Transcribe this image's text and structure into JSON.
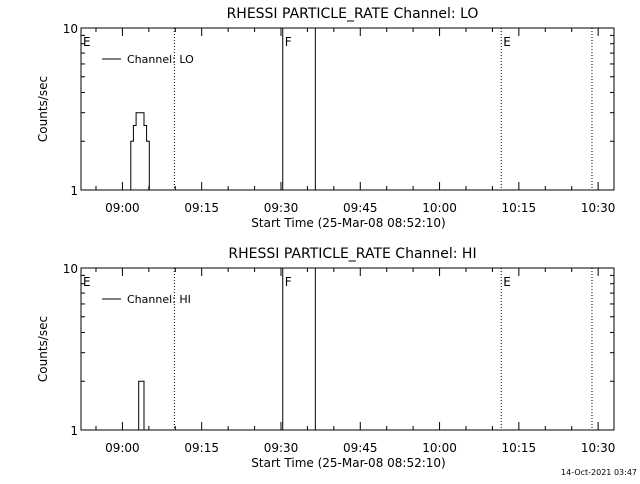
{
  "footer": {
    "timestamp": "14-Oct-2021 03:47"
  },
  "chart_data": [
    {
      "type": "line",
      "title": "RHESSI PARTICLE_RATE Channel: LO",
      "xlabel": "Start Time (25-Mar-08 08:52:10)",
      "ylabel": "Counts/sec",
      "yscale": "log",
      "ylim": [
        1,
        10
      ],
      "yticks": [
        {
          "value": 1,
          "label": "1"
        },
        {
          "value": 10,
          "label": "10"
        }
      ],
      "xticks": [
        {
          "value": "09:00",
          "label": "09:00"
        },
        {
          "value": "09:15",
          "label": "09:15"
        },
        {
          "value": "09:30",
          "label": "09:30"
        },
        {
          "value": "09:45",
          "label": "09:45"
        },
        {
          "value": "10:00",
          "label": "10:00"
        },
        {
          "value": "10:15",
          "label": "10:15"
        },
        {
          "value": "10:30",
          "label": "10:30"
        }
      ],
      "xlim": [
        "08:52:10",
        "10:33:00"
      ],
      "legend": {
        "position": "top-left",
        "entries": [
          "Channel: LO"
        ]
      },
      "series": [
        {
          "name": "Channel: LO",
          "x": [
            "09:01:20",
            "09:01:50",
            "09:02:20",
            "09:02:50",
            "09:03:20",
            "09:03:50",
            "09:04:20",
            "09:04:50",
            "09:05:20"
          ],
          "y": [
            1,
            2,
            2.5,
            3,
            3,
            3,
            2.5,
            2,
            1
          ]
        }
      ],
      "markers": [
        {
          "time": "08:52:10",
          "label": "E",
          "style": "text-only"
        },
        {
          "time": "09:09:50",
          "label": "",
          "style": "dotted"
        },
        {
          "time": "09:30:20",
          "label": "F",
          "style": "solid"
        },
        {
          "time": "09:36:30",
          "label": "",
          "style": "solid"
        },
        {
          "time": "10:11:40",
          "label": "E",
          "style": "dotted"
        },
        {
          "time": "10:28:50",
          "label": "",
          "style": "dotted"
        }
      ]
    },
    {
      "type": "line",
      "title": "RHESSI PARTICLE_RATE Channel: HI",
      "xlabel": "Start Time (25-Mar-08 08:52:10)",
      "ylabel": "Counts/sec",
      "yscale": "log",
      "ylim": [
        1,
        10
      ],
      "yticks": [
        {
          "value": 1,
          "label": "1"
        },
        {
          "value": 10,
          "label": "10"
        }
      ],
      "xticks": [
        {
          "value": "09:00",
          "label": "09:00"
        },
        {
          "value": "09:15",
          "label": "09:15"
        },
        {
          "value": "09:30",
          "label": "09:30"
        },
        {
          "value": "09:45",
          "label": "09:45"
        },
        {
          "value": "10:00",
          "label": "10:00"
        },
        {
          "value": "10:15",
          "label": "10:15"
        },
        {
          "value": "10:30",
          "label": "10:30"
        }
      ],
      "xlim": [
        "08:52:10",
        "10:33:00"
      ],
      "legend": {
        "position": "top-left",
        "entries": [
          "Channel: HI"
        ]
      },
      "series": [
        {
          "name": "Channel: HI",
          "x": [
            "09:02:50",
            "09:03:20",
            "09:03:50",
            "09:04:20"
          ],
          "y": [
            1,
            2,
            2,
            1
          ]
        }
      ],
      "markers": [
        {
          "time": "08:52:10",
          "label": "E",
          "style": "text-only"
        },
        {
          "time": "09:09:50",
          "label": "",
          "style": "dotted"
        },
        {
          "time": "09:30:20",
          "label": "F",
          "style": "solid"
        },
        {
          "time": "09:36:30",
          "label": "",
          "style": "solid"
        },
        {
          "time": "10:11:40",
          "label": "E",
          "style": "dotted"
        },
        {
          "time": "10:28:50",
          "label": "",
          "style": "dotted"
        }
      ]
    }
  ]
}
